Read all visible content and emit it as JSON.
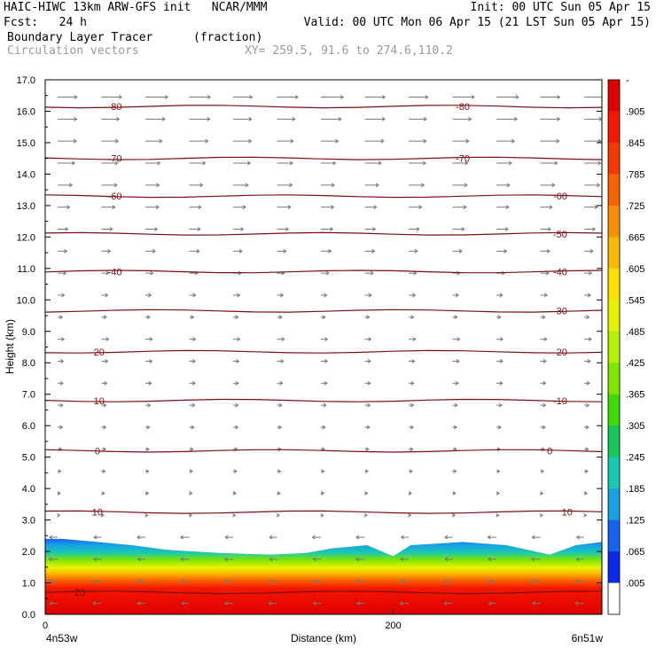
{
  "header": {
    "line1_left": "HAIC-HIWC 13km ARW-GFS init   NCAR/MMM",
    "line1_right": "Init: 00 UTC Sun 05 Apr 15",
    "line2_left": "Fcst:   24 h",
    "line2_right": "Valid: 00 UTC Mon 06 Apr 15 (21 LST Sun 05 Apr 15)",
    "field_name": "Boundary Layer Tracer",
    "field_units": "(fraction)",
    "vector_name": "Circulation vectors",
    "xy_range": "XY= 259.5, 91.6 to 274.6,110.2"
  },
  "colors": {
    "contour": "#7a1010",
    "vector": "#777777"
  },
  "chart_data": {
    "type": "heatmap",
    "ylabel": "Height (km)",
    "xlabel": "Distance (km)",
    "x_left_label": "4n53w",
    "x_right_label": "6n51w",
    "xlim": [
      0,
      320
    ],
    "ylim": [
      0,
      17
    ],
    "x_ticks": [
      0,
      200
    ],
    "x_tick_labels": [
      "0",
      "200"
    ],
    "y_ticks": [
      0,
      1,
      2,
      3,
      4,
      5,
      6,
      7,
      8,
      9,
      10,
      11,
      12,
      13,
      14,
      15,
      16,
      17
    ],
    "y_tick_labels": [
      "0.0",
      "1.0",
      "2.0",
      "3.0",
      "4.0",
      "5.0",
      "6.0",
      "7.0",
      "8.0",
      "9.0",
      "10.0",
      "11.0",
      "12.0",
      "13.0",
      "14.0",
      "15.0",
      "16.0",
      "17.0"
    ],
    "colorbar": {
      "labels": [
        "-",
        ".905",
        ".845",
        ".785",
        ".725",
        ".665",
        ".605",
        ".545",
        ".485",
        ".425",
        ".365",
        ".305",
        ".245",
        ".185",
        ".125",
        ".065",
        ".005"
      ],
      "colors": [
        "#e00000",
        "#f31800",
        "#f53a00",
        "#f76400",
        "#f98e00",
        "#fbb800",
        "#fde000",
        "#e8f200",
        "#b4f000",
        "#7fe600",
        "#3ddc00",
        "#18c85a",
        "#18c8b4",
        "#18a0e6",
        "#1464f0",
        "#0a28e6",
        "#ffffff"
      ]
    },
    "tracer_top_km": [
      [
        0,
        2.4
      ],
      [
        10,
        2.4
      ],
      [
        30,
        2.3
      ],
      [
        50,
        2.2
      ],
      [
        70,
        2.05
      ],
      [
        100,
        1.95
      ],
      [
        130,
        1.9
      ],
      [
        150,
        1.95
      ],
      [
        165,
        2.1
      ],
      [
        185,
        2.2
      ],
      [
        200,
        1.85
      ],
      [
        210,
        2.2
      ],
      [
        240,
        2.3
      ],
      [
        265,
        2.2
      ],
      [
        290,
        1.9
      ],
      [
        305,
        2.2
      ],
      [
        320,
        2.3
      ]
    ],
    "temperature_contours": [
      {
        "label": "20",
        "km": 0.7,
        "lx": [
          20
        ]
      },
      {
        "label": "10",
        "km": 3.25,
        "lx": [
          30,
          300
        ]
      },
      {
        "label": "0",
        "km": 5.2,
        "lx": [
          30,
          290
        ]
      },
      {
        "label": "-10",
        "km": 6.8,
        "lx": [
          30,
          296
        ]
      },
      {
        "label": "-20",
        "km": 8.35,
        "lx": [
          30,
          296
        ]
      },
      {
        "label": "-30",
        "km": 9.65,
        "lx": [
          296
        ]
      },
      {
        "label": "-40",
        "km": 10.9,
        "lx": [
          40,
          296
        ]
      },
      {
        "label": "-50",
        "km": 12.1,
        "lx": [
          296
        ]
      },
      {
        "label": "-60",
        "km": 13.3,
        "lx": [
          40,
          296
        ]
      },
      {
        "label": "-70",
        "km": 14.5,
        "lx": [
          40,
          240
        ]
      },
      {
        "label": "-80",
        "km": 16.15,
        "lx": [
          40,
          240
        ]
      }
    ]
  }
}
